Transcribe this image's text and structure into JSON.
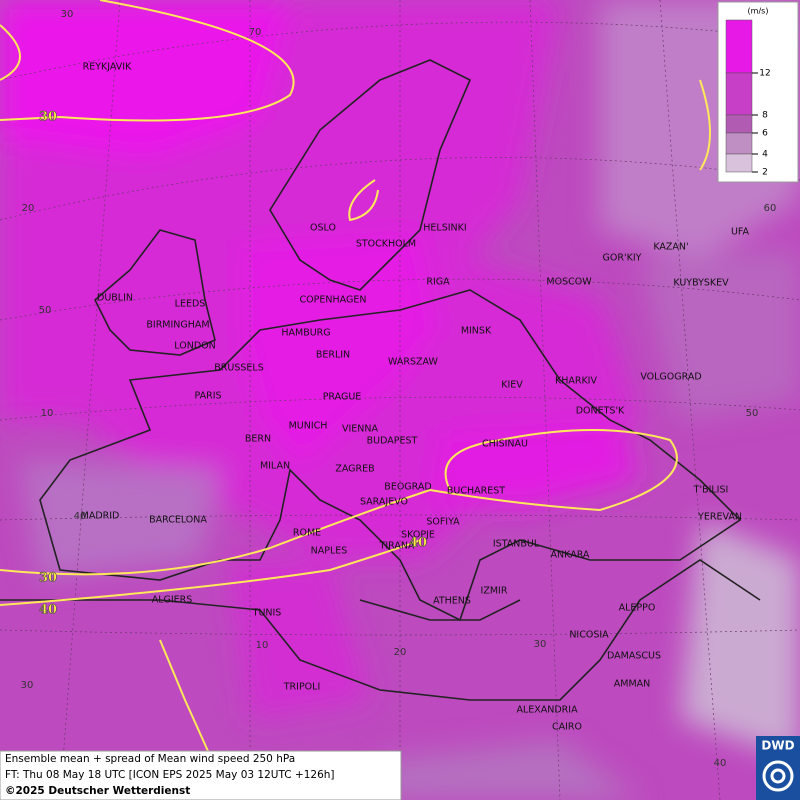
{
  "legend": {
    "title": "(m/s)",
    "ticks": [
      12,
      8,
      6,
      4,
      2
    ],
    "colors": [
      "#e619e6",
      "#c73ec7",
      "#b25bb2",
      "#bf8fc4",
      "#d9c2dc"
    ]
  },
  "grid_labels": [
    "30",
    "70",
    "20",
    "60",
    "50",
    "10",
    "50",
    "40",
    "30",
    "10",
    "20",
    "30",
    "40"
  ],
  "contour_labels": [
    "30",
    "30",
    "40",
    "40"
  ],
  "cities": [
    "REYKJAVIK",
    "OSLO",
    "STOCKHOLM",
    "HELSINKI",
    "RIGA",
    "DUBLIN",
    "LEEDS",
    "BIRMINGHAM",
    "LONDON",
    "COPENHAGEN",
    "HAMBURG",
    "BERLIN",
    "MINSK",
    "MOSCOW",
    "GOR'KIY",
    "KAZAN'",
    "UFA",
    "KUYBYSKEV",
    "WARSZAW",
    "KIEV",
    "KHARKIV",
    "VOLGOGRAD",
    "BRUSSELS",
    "PARIS",
    "PRAGUE",
    "DONETS'K",
    "BERN",
    "MUNICH",
    "VIENNA",
    "BUDAPEST",
    "CHISINAU",
    "MILAN",
    "ZAGREB",
    "BEOGRAD",
    "BUCHAREST",
    "T'BILISI",
    "SARAJEVO",
    "MADRID",
    "BARCELONA",
    "SOFIYA",
    "YEREVAN",
    "ROME",
    "SKOPJE",
    "TIRANA",
    "ISTANBUL",
    "NAPLES",
    "ANKARA",
    "ALGIERS",
    "ATHENS",
    "IZMIR",
    "ALEPPO",
    "TUNIS",
    "NICOSIA",
    "DAMASCUS",
    "AMMAN",
    "TRIPOLI",
    "ALEXANDRIA",
    "CAIRO"
  ],
  "footer": {
    "lines": [
      "Ensemble mean + spread of Mean wind speed 250 hPa",
      "FT: Thu 08 May 18 UTC [ICON EPS 2025 May 03 12UTC +126h]",
      "©2025 Deutscher Wetterdienst"
    ]
  },
  "logo": "DWD"
}
